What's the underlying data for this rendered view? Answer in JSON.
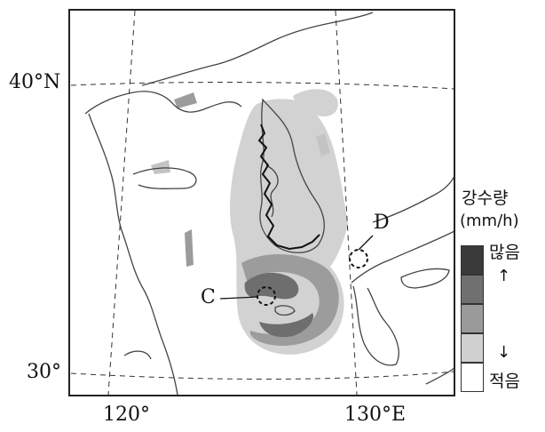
{
  "axes": {
    "lat_labels": [
      {
        "value": 40,
        "text": "40°N"
      },
      {
        "value": 30,
        "text": "30°"
      }
    ],
    "lon_labels": [
      {
        "value": 120,
        "text": "120°"
      },
      {
        "value": 130,
        "text": "130°E"
      }
    ]
  },
  "points": [
    {
      "id": "C",
      "label": "C"
    },
    {
      "id": "D",
      "label": "D"
    }
  ],
  "legend": {
    "title_line1": "강수량",
    "title_line2": "(mm/h)",
    "top_label": "많음",
    "bottom_label": "적음",
    "up_arrow": "↑",
    "down_arrow": "↓",
    "levels": [
      "#3a3a3a",
      "#707070",
      "#9a9a9a",
      "#d0d0d0",
      "#ffffff"
    ]
  },
  "colors": {
    "frame": "#222222",
    "coast": "#444444",
    "grid": "#333333"
  }
}
